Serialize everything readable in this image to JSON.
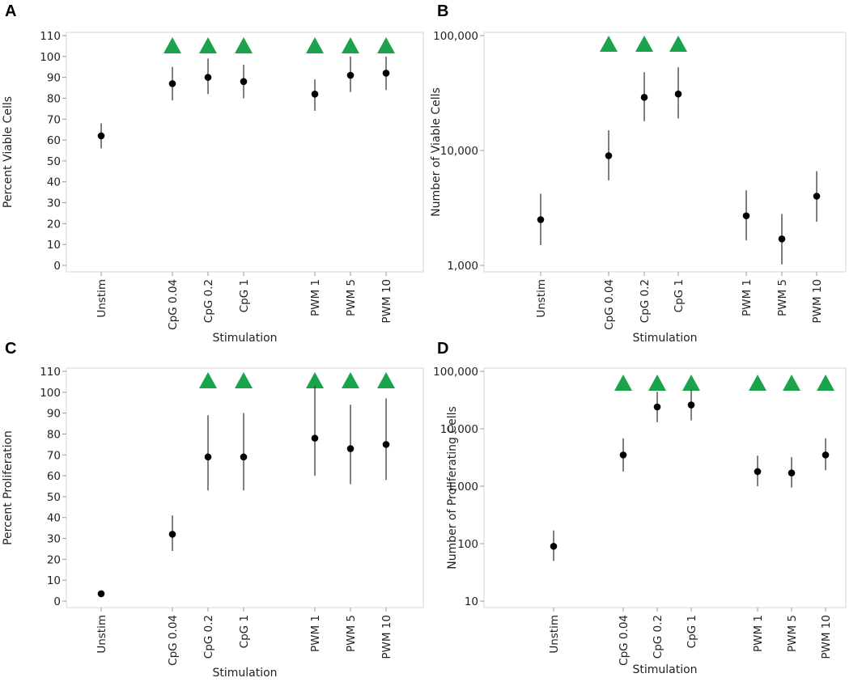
{
  "colors": {
    "marker": "#000000",
    "significance": "#1aa34a",
    "errorbar": "#3a3a3a"
  },
  "chart_data": [
    {
      "panel": "A",
      "type": "scatter",
      "title": "",
      "xlabel": "Stimulation",
      "ylabel": "Percent Viable Cells",
      "yscale": "linear",
      "ylim": [
        0,
        110
      ],
      "yticks": [
        0,
        10,
        20,
        30,
        40,
        50,
        60,
        70,
        80,
        90,
        100,
        110
      ],
      "ytick_labels": [
        "0",
        "10",
        "20",
        "30",
        "40",
        "50",
        "60",
        "70",
        "80",
        "90",
        "100",
        "110"
      ],
      "categories": [
        "Unstim",
        "CpG 0.04",
        "CpG 0.2",
        "CpG 1",
        "PWM 1",
        "PWM 5",
        "PWM 10"
      ],
      "values": [
        62,
        87,
        90,
        88,
        82,
        91,
        92
      ],
      "err_low": [
        56,
        79,
        82,
        80,
        74,
        83,
        84
      ],
      "err_high": [
        68,
        95,
        99,
        96,
        89,
        100,
        100
      ],
      "significant": [
        false,
        true,
        true,
        true,
        true,
        true,
        true
      ]
    },
    {
      "panel": "B",
      "type": "scatter",
      "title": "",
      "xlabel": "Stimulation",
      "ylabel": "Number of Viable Cells",
      "yscale": "log",
      "ylim": [
        1000,
        100000
      ],
      "yticks": [
        1000,
        10000,
        100000
      ],
      "ytick_labels": [
        "1,000",
        "10,000",
        "100,000"
      ],
      "categories": [
        "Unstim",
        "CpG 0.04",
        "CpG 0.2",
        "CpG 1",
        "PWM 1",
        "PWM 5",
        "PWM 10"
      ],
      "values": [
        2500,
        9000,
        29000,
        31000,
        2700,
        1700,
        4000
      ],
      "err_low": [
        1500,
        5500,
        18000,
        19000,
        1650,
        1020,
        2400
      ],
      "err_high": [
        4200,
        15000,
        48000,
        53000,
        4500,
        2800,
        6600
      ],
      "significant": [
        false,
        true,
        true,
        true,
        false,
        false,
        false
      ]
    },
    {
      "panel": "C",
      "type": "scatter",
      "title": "",
      "xlabel": "Stimulation",
      "ylabel": "Percent Proliferation",
      "yscale": "linear",
      "ylim": [
        0,
        110
      ],
      "yticks": [
        0,
        10,
        20,
        30,
        40,
        50,
        60,
        70,
        80,
        90,
        100,
        110
      ],
      "ytick_labels": [
        "0",
        "10",
        "20",
        "30",
        "40",
        "50",
        "60",
        "70",
        "80",
        "90",
        "100",
        "110"
      ],
      "categories": [
        "Unstim",
        "CpG 0.04",
        "CpG 0.2",
        "CpG 1",
        "PWM 1",
        "PWM 5",
        "PWM 10"
      ],
      "values": [
        3.5,
        32,
        69,
        69,
        78,
        73,
        75
      ],
      "err_low": [
        3.5,
        24,
        53,
        53,
        60,
        56,
        58
      ],
      "err_high": [
        3.5,
        41,
        89,
        90,
        103,
        94,
        97
      ],
      "significant": [
        false,
        false,
        true,
        true,
        true,
        true,
        true
      ]
    },
    {
      "panel": "D",
      "type": "scatter",
      "title": "",
      "xlabel": "Stimulation",
      "ylabel": "Number of Proliferating Cells",
      "yscale": "log",
      "ylim": [
        10,
        100000
      ],
      "yticks": [
        10,
        100,
        1000,
        10000,
        100000
      ],
      "ytick_labels": [
        "10",
        "100",
        "1,000",
        "10,000",
        "100,000"
      ],
      "categories": [
        "Unstim",
        "CpG 0.04",
        "CpG 0.2",
        "CpG 1",
        "PWM 1",
        "PWM 5",
        "PWM 10"
      ],
      "values": [
        90,
        3500,
        24000,
        26000,
        1800,
        1700,
        3500
      ],
      "err_low": [
        50,
        1800,
        13000,
        14000,
        1000,
        950,
        1900
      ],
      "err_high": [
        170,
        6800,
        44000,
        48000,
        3400,
        3200,
        6800
      ],
      "significant": [
        false,
        true,
        true,
        true,
        true,
        true,
        true
      ]
    }
  ]
}
